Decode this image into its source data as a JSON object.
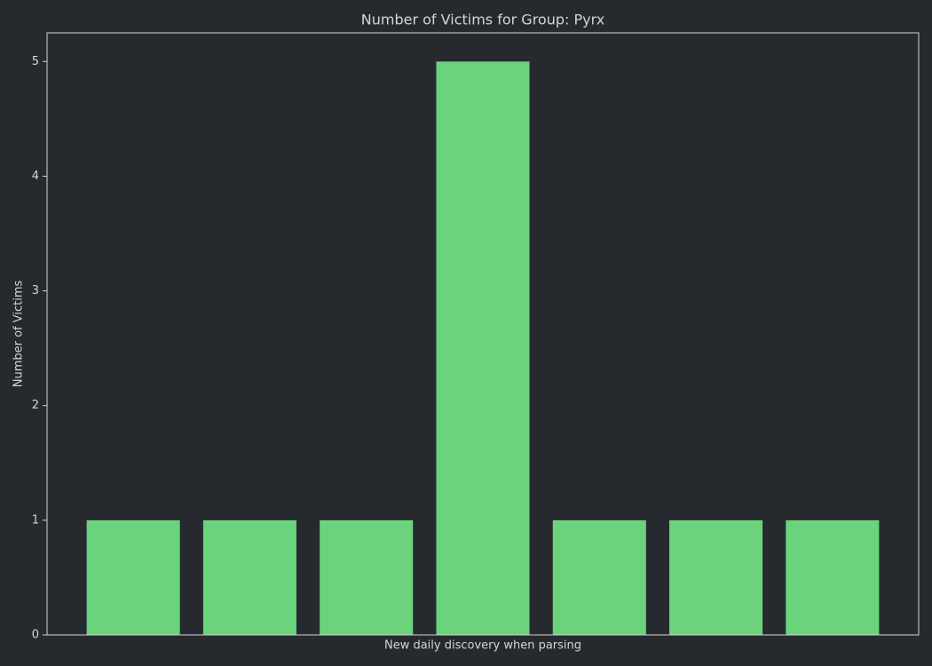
{
  "chart_data": {
    "type": "bar",
    "title": "Number of Victims for Group: Pyrx",
    "x_label": "New daily discovery when parsing",
    "y_label": "Number of Victims",
    "categories": [
      null,
      null,
      null,
      null,
      null,
      null,
      null
    ],
    "values": [
      1,
      1,
      1,
      5,
      1,
      1,
      1
    ],
    "color": "#6bd37c",
    "ylim": [
      0,
      5.25
    ],
    "yticks": [
      0,
      1,
      2,
      3,
      4,
      5
    ],
    "grid": false
  }
}
